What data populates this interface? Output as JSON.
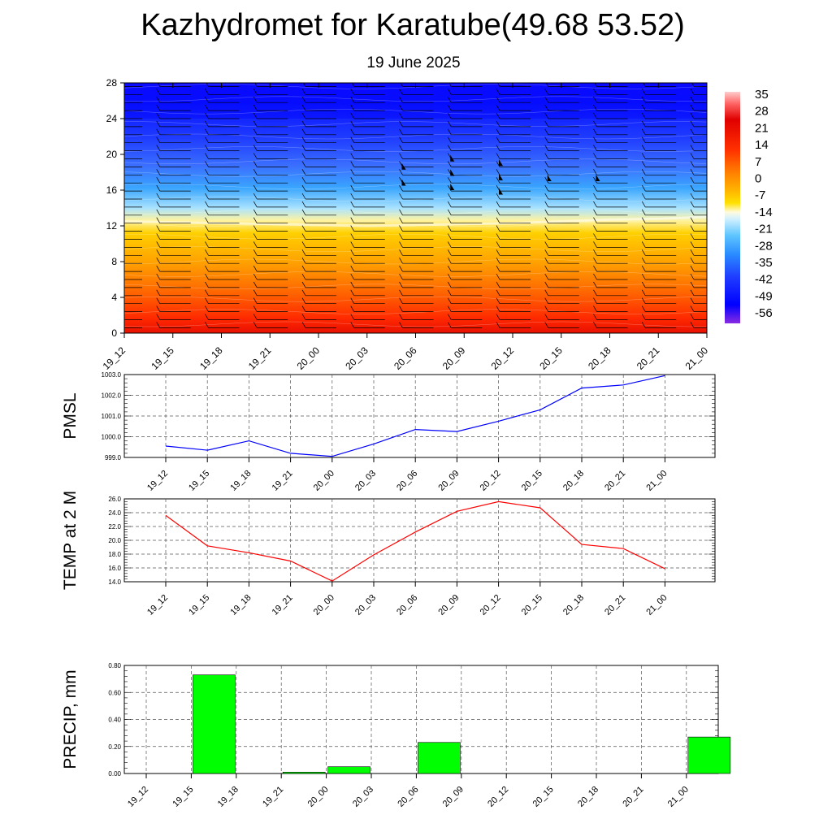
{
  "title": "Kazhydromet for Karatube(49.68 53.52)",
  "subtitle": "19 June 2025",
  "time_labels": [
    "19_12",
    "19_15",
    "19_18",
    "19_21",
    "20_00",
    "20_03",
    "20_06",
    "20_09",
    "20_12",
    "20_15",
    "20_18",
    "20_21",
    "21_00"
  ],
  "chart_data": [
    {
      "type": "heatmap",
      "name": "cross-section",
      "x": [
        "19_12",
        "19_15",
        "19_18",
        "19_21",
        "20_00",
        "20_03",
        "20_06",
        "20_09",
        "20_12",
        "20_15",
        "20_18",
        "20_21",
        "21_00"
      ],
      "y_ticks": [
        0,
        4,
        8,
        12,
        16,
        20,
        24,
        28
      ],
      "ylim": [
        0,
        28
      ],
      "freezing_level": [
        12.5,
        12.4,
        12.3,
        12.2,
        12.1,
        12.0,
        12.1,
        12.2,
        12.3,
        12.5,
        12.7,
        12.8,
        13.0
      ],
      "colorbar": {
        "labels": [
          "35",
          "28",
          "21",
          "14",
          "7",
          "0",
          "-7",
          "-14",
          "-21",
          "-28",
          "-35",
          "-42",
          "-49",
          "-56"
        ],
        "min": -56,
        "max": 35,
        "colors": [
          "#8a2be2",
          "#0000ff",
          "#1e3cff",
          "#2e6bff",
          "#3d9bff",
          "#6ec8ff",
          "#d9f2ff",
          "#fff6b0",
          "#ffd200",
          "#ffa000",
          "#ff6a00",
          "#ff3000",
          "#e80000",
          "#ff9999",
          "#ffcccc"
        ]
      },
      "wind_barbs": "pennants aloft at 20_06, 20_09, 20_12, 20_15, 20_18 near 16-19 levels"
    },
    {
      "type": "line",
      "ylabel": "PMSL",
      "x": [
        "19_12",
        "19_15",
        "19_18",
        "19_21",
        "20_00",
        "20_03",
        "20_06",
        "20_09",
        "20_12",
        "20_15",
        "20_18",
        "20_21",
        "21_00"
      ],
      "y": [
        999.55,
        999.35,
        999.8,
        999.2,
        999.05,
        999.65,
        1000.35,
        1000.25,
        1000.75,
        1001.3,
        1002.35,
        1002.5,
        1002.95
      ],
      "ylim": [
        999.0,
        1003.0
      ],
      "y_ticks": [
        "999.0",
        "1000.0",
        "1001.0",
        "1002.0",
        "1003.0"
      ],
      "color": "#0000ff"
    },
    {
      "type": "line",
      "ylabel": "TEMP at 2 M",
      "x": [
        "19_12",
        "19_15",
        "19_18",
        "19_21",
        "20_00",
        "20_03",
        "20_06",
        "20_09",
        "20_12",
        "20_15",
        "20_18",
        "20_21",
        "21_00"
      ],
      "y": [
        23.6,
        19.2,
        18.2,
        17.0,
        14.1,
        17.9,
        21.2,
        24.2,
        25.6,
        24.7,
        19.4,
        18.8,
        15.9
      ],
      "ylim": [
        14.0,
        26.0
      ],
      "y_ticks": [
        "14.0",
        "16.0",
        "18.0",
        "20.0",
        "22.0",
        "24.0",
        "26.0"
      ],
      "color": "#ff0000"
    },
    {
      "type": "bar",
      "ylabel": "PRECIP, mm",
      "categories": [
        "19_12",
        "19_15",
        "19_18",
        "19_21",
        "20_00",
        "20_03",
        "20_06",
        "20_09",
        "20_12",
        "20_15",
        "20_18",
        "20_21",
        "21_00"
      ],
      "values": [
        0,
        0.73,
        0,
        0.01,
        0.05,
        0,
        0.23,
        0,
        0,
        0,
        0,
        0,
        0.27
      ],
      "ylim": [
        0,
        0.8
      ],
      "y_ticks": [
        "0.00",
        "0.20",
        "0.40",
        "0.60",
        "0.80"
      ],
      "color": "#00ff00"
    }
  ]
}
